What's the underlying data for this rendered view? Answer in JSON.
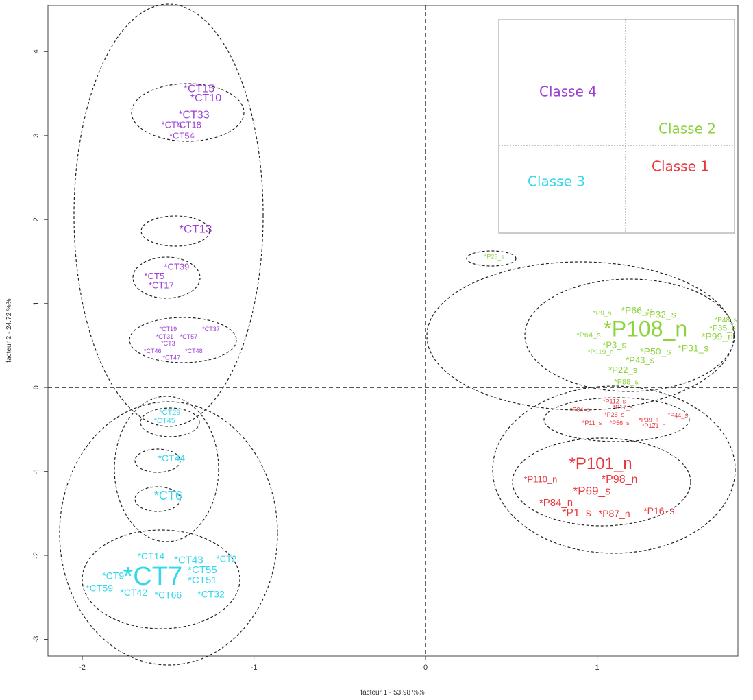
{
  "chart_data": {
    "type": "scatter",
    "xlabel": "facteur  1  - 53.98 %%",
    "ylabel": "facteur  2 - 24.72 %%",
    "xlim": [
      -2.2,
      1.82
    ],
    "ylim": [
      -3.2,
      4.55
    ],
    "x_ticks": [
      "-2",
      "-1",
      "0",
      "1"
    ],
    "y_ticks": [
      "4",
      "3",
      "2",
      "1",
      "0",
      "-1",
      "-2",
      "-3"
    ],
    "grid": false,
    "colors": {
      "classe1": "#e8383d",
      "classe2": "#8cd43c",
      "classe3": "#33d8ec",
      "classe4": "#9b3fd6"
    },
    "series": [
      {
        "class": "classe4",
        "points": [
          {
            "label": "*CT15",
            "x": -1.32,
            "y": 3.55,
            "size": 16
          },
          {
            "label": "*CT10",
            "x": -1.28,
            "y": 3.44,
            "size": 16
          },
          {
            "label": "*CT33",
            "x": -1.35,
            "y": 3.24,
            "size": 16
          },
          {
            "label": "*CT4",
            "x": -1.48,
            "y": 3.12,
            "size": 13
          },
          {
            "label": "*CT18",
            "x": -1.38,
            "y": 3.12,
            "size": 13
          },
          {
            "label": "*CT54",
            "x": -1.42,
            "y": 2.99,
            "size": 13
          },
          {
            "label": "*CT13",
            "x": -1.34,
            "y": 1.88,
            "size": 17
          },
          {
            "label": "*CT39",
            "x": -1.45,
            "y": 1.43,
            "size": 13
          },
          {
            "label": "*CT5",
            "x": -1.58,
            "y": 1.32,
            "size": 13
          },
          {
            "label": "*CT17",
            "x": -1.54,
            "y": 1.21,
            "size": 13
          },
          {
            "label": "*CT19",
            "x": -1.5,
            "y": 0.69,
            "size": 9
          },
          {
            "label": "*CT37",
            "x": -1.25,
            "y": 0.69,
            "size": 9
          },
          {
            "label": "*CT31",
            "x": -1.52,
            "y": 0.6,
            "size": 9
          },
          {
            "label": "*CT57",
            "x": -1.38,
            "y": 0.6,
            "size": 9
          },
          {
            "label": "*CT3",
            "x": -1.5,
            "y": 0.52,
            "size": 9
          },
          {
            "label": "*CT46",
            "x": -1.59,
            "y": 0.43,
            "size": 9
          },
          {
            "label": "*CT48",
            "x": -1.35,
            "y": 0.43,
            "size": 9
          },
          {
            "label": "*CT47",
            "x": -1.48,
            "y": 0.35,
            "size": 9
          }
        ]
      },
      {
        "class": "classe2",
        "points": [
          {
            "label": "*P25_s",
            "x": 0.4,
            "y": 1.55,
            "size": 9
          },
          {
            "label": "*P9_s",
            "x": 1.03,
            "y": 0.88,
            "size": 10
          },
          {
            "label": "*P66_s",
            "x": 1.23,
            "y": 0.91,
            "size": 14
          },
          {
            "label": "*P32_s",
            "x": 1.37,
            "y": 0.86,
            "size": 14
          },
          {
            "label": "*P48_s",
            "x": 1.75,
            "y": 0.8,
            "size": 10
          },
          {
            "label": "*P35_s",
            "x": 1.73,
            "y": 0.7,
            "size": 12
          },
          {
            "label": "*P108_n",
            "x": 1.28,
            "y": 0.68,
            "size": 32
          },
          {
            "label": "*P64_s",
            "x": 0.95,
            "y": 0.62,
            "size": 11
          },
          {
            "label": "*P99_n",
            "x": 1.7,
            "y": 0.6,
            "size": 14
          },
          {
            "label": "*P3_s",
            "x": 1.1,
            "y": 0.5,
            "size": 13
          },
          {
            "label": "*P50_s",
            "x": 1.34,
            "y": 0.42,
            "size": 14
          },
          {
            "label": "*P31_s",
            "x": 1.56,
            "y": 0.46,
            "size": 14
          },
          {
            "label": "*P119_n",
            "x": 1.02,
            "y": 0.42,
            "size": 10
          },
          {
            "label": "*P43_s",
            "x": 1.25,
            "y": 0.32,
            "size": 13
          },
          {
            "label": "*P22_s",
            "x": 1.15,
            "y": 0.2,
            "size": 13
          },
          {
            "label": "*P88_s",
            "x": 1.17,
            "y": 0.06,
            "size": 11
          }
        ]
      },
      {
        "class": "classe1",
        "points": [
          {
            "label": "*P112_s",
            "x": 1.1,
            "y": -0.17,
            "size": 9
          },
          {
            "label": "*P17_s",
            "x": 1.15,
            "y": -0.24,
            "size": 9
          },
          {
            "label": "*P34_s",
            "x": 0.9,
            "y": -0.27,
            "size": 9
          },
          {
            "label": "*P26_s",
            "x": 1.1,
            "y": -0.33,
            "size": 9
          },
          {
            "label": "*P39_s",
            "x": 1.3,
            "y": -0.39,
            "size": 9
          },
          {
            "label": "*P44_s",
            "x": 1.47,
            "y": -0.34,
            "size": 9
          },
          {
            "label": "*P11_s",
            "x": 0.97,
            "y": -0.43,
            "size": 9
          },
          {
            "label": "*P56_s",
            "x": 1.13,
            "y": -0.43,
            "size": 9
          },
          {
            "label": "*P121_n",
            "x": 1.33,
            "y": -0.46,
            "size": 9
          },
          {
            "label": "*P101_n",
            "x": 1.02,
            "y": -0.92,
            "size": 24
          },
          {
            "label": "*P110_n",
            "x": 0.67,
            "y": -1.1,
            "size": 13
          },
          {
            "label": "*P98_n",
            "x": 1.13,
            "y": -1.1,
            "size": 16
          },
          {
            "label": "*P69_s",
            "x": 0.97,
            "y": -1.24,
            "size": 17
          },
          {
            "label": "*P84_n",
            "x": 0.76,
            "y": -1.38,
            "size": 15
          },
          {
            "label": "*P1_s",
            "x": 0.88,
            "y": -1.5,
            "size": 16
          },
          {
            "label": "*P87_n",
            "x": 1.1,
            "y": -1.51,
            "size": 14
          },
          {
            "label": "*P16_s",
            "x": 1.36,
            "y": -1.48,
            "size": 14
          }
        ]
      },
      {
        "class": "classe3",
        "points": [
          {
            "label": "*CT29",
            "x": -1.49,
            "y": -0.3,
            "size": 11
          },
          {
            "label": "*CT45",
            "x": -1.52,
            "y": -0.4,
            "size": 11
          },
          {
            "label": "*CT44",
            "x": -1.48,
            "y": -0.85,
            "size": 14
          },
          {
            "label": "*CT6",
            "x": -1.5,
            "y": -1.3,
            "size": 18
          },
          {
            "label": "*CT14",
            "x": -1.6,
            "y": -2.02,
            "size": 14
          },
          {
            "label": "*CT43",
            "x": -1.38,
            "y": -2.06,
            "size": 15
          },
          {
            "label": "*CT2",
            "x": -1.16,
            "y": -2.05,
            "size": 13
          },
          {
            "label": "*CT9",
            "x": -1.82,
            "y": -2.25,
            "size": 14
          },
          {
            "label": "*CT7",
            "x": -1.59,
            "y": -2.27,
            "size": 38
          },
          {
            "label": "*CT55",
            "x": -1.3,
            "y": -2.18,
            "size": 15
          },
          {
            "label": "*CT51",
            "x": -1.3,
            "y": -2.3,
            "size": 15
          },
          {
            "label": "*CT59",
            "x": -1.9,
            "y": -2.4,
            "size": 14
          },
          {
            "label": "*CT42",
            "x": -1.7,
            "y": -2.45,
            "size": 14
          },
          {
            "label": "*CT66",
            "x": -1.5,
            "y": -2.48,
            "size": 14
          },
          {
            "label": "*CT32",
            "x": -1.25,
            "y": -2.47,
            "size": 14
          }
        ]
      }
    ],
    "inset": {
      "labels": [
        {
          "text": "Classe 4",
          "class": "classe4"
        },
        {
          "text": "Classe 2",
          "class": "classe2"
        },
        {
          "text": "Classe 1",
          "class": "classe1"
        },
        {
          "text": "Classe 3",
          "class": "classe3"
        }
      ]
    }
  }
}
